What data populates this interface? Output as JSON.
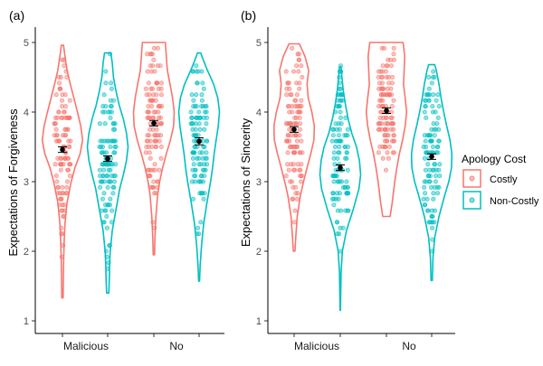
{
  "chart_data": [
    {
      "type": "violin",
      "panel_tag": "(a)",
      "ylabel": "Expectations of Forgiveness",
      "xlabel": "",
      "categories": [
        "Malicious",
        "No"
      ],
      "ylim": [
        0.8,
        5.15
      ],
      "yticks": [
        1,
        2,
        3,
        4,
        5
      ],
      "series": [
        {
          "group": "Malicious",
          "name": "Costly",
          "mean": 3.46,
          "se": 0.04,
          "min": 1.33,
          "max": 4.96,
          "density": [
            [
              1.33,
              0.03
            ],
            [
              1.5,
              0.04
            ],
            [
              1.8,
              0.05
            ],
            [
              2.1,
              0.08
            ],
            [
              2.4,
              0.12
            ],
            [
              2.7,
              0.22
            ],
            [
              3.0,
              0.42
            ],
            [
              3.2,
              0.6
            ],
            [
              3.4,
              0.85
            ],
            [
              3.6,
              0.97
            ],
            [
              3.8,
              0.88
            ],
            [
              4.0,
              0.72
            ],
            [
              4.2,
              0.55
            ],
            [
              4.4,
              0.38
            ],
            [
              4.6,
              0.22
            ],
            [
              4.8,
              0.12
            ],
            [
              4.96,
              0.05
            ]
          ]
        },
        {
          "group": "Malicious",
          "name": "Non-Costly",
          "mean": 3.33,
          "se": 0.04,
          "min": 1.4,
          "max": 4.85,
          "density": [
            [
              1.4,
              0.05
            ],
            [
              1.6,
              0.08
            ],
            [
              1.8,
              0.09
            ],
            [
              2.0,
              0.12
            ],
            [
              2.3,
              0.22
            ],
            [
              2.6,
              0.4
            ],
            [
              2.9,
              0.58
            ],
            [
              3.1,
              0.75
            ],
            [
              3.3,
              0.9
            ],
            [
              3.5,
              0.98
            ],
            [
              3.7,
              0.9
            ],
            [
              3.9,
              0.75
            ],
            [
              4.1,
              0.55
            ],
            [
              4.3,
              0.4
            ],
            [
              4.5,
              0.28
            ],
            [
              4.7,
              0.22
            ],
            [
              4.85,
              0.15
            ]
          ]
        },
        {
          "group": "No",
          "name": "Costly",
          "mean": 3.84,
          "se": 0.04,
          "min": 1.95,
          "max": 5.0,
          "density": [
            [
              1.95,
              0.03
            ],
            [
              2.2,
              0.05
            ],
            [
              2.5,
              0.1
            ],
            [
              2.8,
              0.18
            ],
            [
              3.0,
              0.28
            ],
            [
              3.2,
              0.42
            ],
            [
              3.4,
              0.6
            ],
            [
              3.6,
              0.8
            ],
            [
              3.8,
              0.95
            ],
            [
              4.0,
              0.98
            ],
            [
              4.2,
              0.9
            ],
            [
              4.4,
              0.78
            ],
            [
              4.6,
              0.65
            ],
            [
              4.8,
              0.6
            ],
            [
              5.0,
              0.55
            ]
          ]
        },
        {
          "group": "No",
          "name": "Non-Costly",
          "mean": 3.58,
          "se": 0.05,
          "min": 1.57,
          "max": 4.85,
          "density": [
            [
              1.57,
              0.02
            ],
            [
              1.8,
              0.05
            ],
            [
              2.1,
              0.12
            ],
            [
              2.4,
              0.22
            ],
            [
              2.7,
              0.38
            ],
            [
              3.0,
              0.55
            ],
            [
              3.2,
              0.65
            ],
            [
              3.4,
              0.72
            ],
            [
              3.6,
              0.82
            ],
            [
              3.8,
              0.92
            ],
            [
              4.0,
              0.98
            ],
            [
              4.2,
              0.9
            ],
            [
              4.4,
              0.7
            ],
            [
              4.6,
              0.4
            ],
            [
              4.75,
              0.2
            ],
            [
              4.85,
              0.08
            ]
          ]
        }
      ]
    },
    {
      "type": "violin",
      "panel_tag": "(b)",
      "ylabel": "Expectations of Sincerity",
      "xlabel": "",
      "categories": [
        "Malicious",
        "No"
      ],
      "ylim": [
        0.8,
        5.15
      ],
      "yticks": [
        1,
        2,
        3,
        4,
        5
      ],
      "series": [
        {
          "group": "Malicious",
          "name": "Costly",
          "mean": 3.75,
          "se": 0.04,
          "min": 2.0,
          "max": 4.98,
          "density": [
            [
              2.0,
              0.04
            ],
            [
              2.2,
              0.08
            ],
            [
              2.5,
              0.15
            ],
            [
              2.8,
              0.3
            ],
            [
              3.0,
              0.45
            ],
            [
              3.2,
              0.62
            ],
            [
              3.4,
              0.8
            ],
            [
              3.6,
              0.95
            ],
            [
              3.8,
              0.97
            ],
            [
              4.0,
              0.85
            ],
            [
              4.2,
              0.68
            ],
            [
              4.4,
              0.62
            ],
            [
              4.6,
              0.7
            ],
            [
              4.8,
              0.52
            ],
            [
              4.98,
              0.25
            ]
          ]
        },
        {
          "group": "Malicious",
          "name": "Non-Costly",
          "mean": 3.2,
          "se": 0.04,
          "min": 1.15,
          "max": 4.65,
          "density": [
            [
              1.15,
              0.01
            ],
            [
              1.4,
              0.02
            ],
            [
              1.7,
              0.04
            ],
            [
              2.0,
              0.1
            ],
            [
              2.3,
              0.3
            ],
            [
              2.6,
              0.62
            ],
            [
              2.9,
              0.9
            ],
            [
              3.1,
              0.98
            ],
            [
              3.3,
              0.92
            ],
            [
              3.5,
              0.78
            ],
            [
              3.7,
              0.55
            ],
            [
              3.9,
              0.38
            ],
            [
              4.1,
              0.25
            ],
            [
              4.3,
              0.15
            ],
            [
              4.5,
              0.08
            ],
            [
              4.65,
              0.04
            ]
          ]
        },
        {
          "group": "No",
          "name": "Costly",
          "mean": 4.02,
          "se": 0.04,
          "min": 2.5,
          "max": 5.0,
          "density": [
            [
              2.5,
              0.18
            ],
            [
              2.7,
              0.28
            ],
            [
              3.0,
              0.4
            ],
            [
              3.2,
              0.5
            ],
            [
              3.4,
              0.62
            ],
            [
              3.6,
              0.78
            ],
            [
              3.8,
              0.9
            ],
            [
              4.0,
              0.97
            ],
            [
              4.2,
              0.9
            ],
            [
              4.4,
              0.82
            ],
            [
              4.6,
              0.85
            ],
            [
              4.8,
              0.88
            ],
            [
              5.0,
              0.8
            ]
          ]
        },
        {
          "group": "No",
          "name": "Non-Costly",
          "mean": 3.36,
          "se": 0.04,
          "min": 1.58,
          "max": 4.68,
          "density": [
            [
              1.58,
              0.03
            ],
            [
              1.9,
              0.06
            ],
            [
              2.2,
              0.15
            ],
            [
              2.5,
              0.35
            ],
            [
              2.8,
              0.62
            ],
            [
              3.0,
              0.82
            ],
            [
              3.2,
              0.95
            ],
            [
              3.4,
              0.97
            ],
            [
              3.6,
              0.88
            ],
            [
              3.8,
              0.72
            ],
            [
              4.0,
              0.58
            ],
            [
              4.2,
              0.45
            ],
            [
              4.4,
              0.35
            ],
            [
              4.6,
              0.22
            ],
            [
              4.68,
              0.15
            ]
          ]
        }
      ]
    }
  ],
  "legend": {
    "title": "Apology Cost",
    "placement": "right",
    "items": [
      {
        "label": "Costly",
        "color": "#F8766D"
      },
      {
        "label": "Non-Costly",
        "color": "#00BFC4"
      }
    ]
  },
  "colors": {
    "Costly": "#F8766D",
    "Non-Costly": "#00BFC4",
    "mean_marker": "#000000"
  }
}
